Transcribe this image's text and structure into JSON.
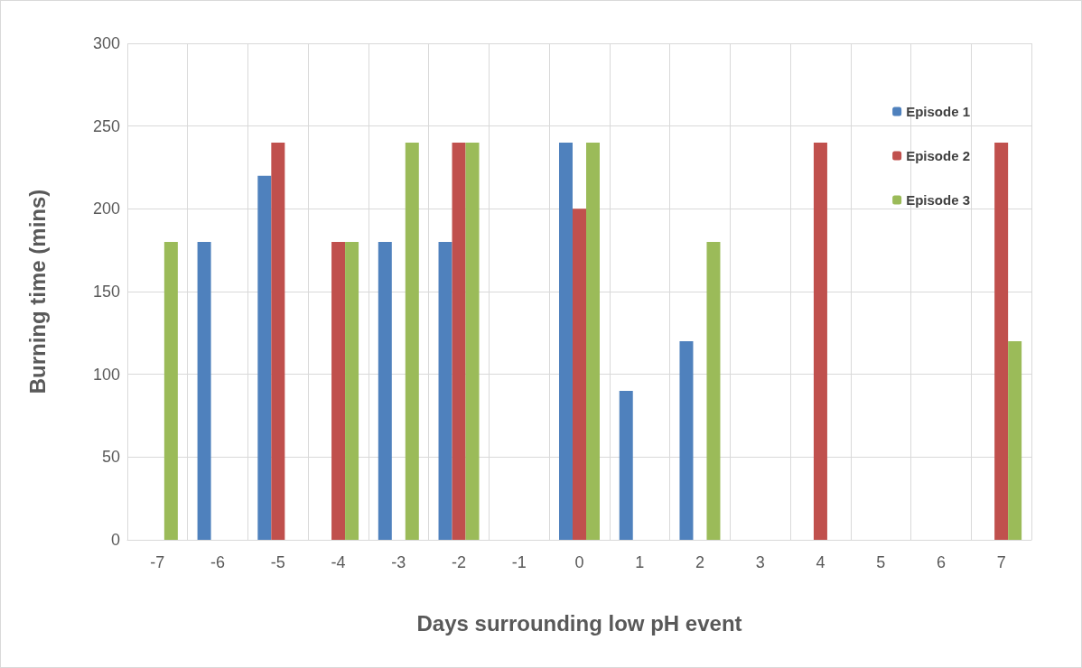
{
  "chart_data": {
    "type": "bar",
    "xlabel": "Days surrounding low pH event",
    "ylabel": "Burning time (mins)",
    "categories": [
      "-7",
      "-6",
      "-5",
      "-4",
      "-3",
      "-2",
      "-1",
      "0",
      "1",
      "2",
      "3",
      "4",
      "5",
      "6",
      "7"
    ],
    "series": [
      {
        "name": "Episode 1",
        "color": "#4f81bd",
        "values": [
          null,
          180,
          220,
          null,
          180,
          180,
          null,
          240,
          90,
          120,
          null,
          null,
          null,
          null,
          null
        ]
      },
      {
        "name": "Episode 2",
        "color": "#c0504d",
        "values": [
          null,
          null,
          240,
          180,
          null,
          240,
          null,
          200,
          null,
          null,
          null,
          240,
          null,
          null,
          240
        ]
      },
      {
        "name": "Episode 3",
        "color": "#9bbb59",
        "values": [
          180,
          null,
          null,
          180,
          240,
          240,
          null,
          240,
          null,
          180,
          null,
          null,
          null,
          null,
          120
        ]
      }
    ],
    "ylim": [
      0,
      300
    ],
    "yticks": [
      0,
      50,
      100,
      150,
      200,
      250,
      300
    ],
    "grid": true,
    "legend": "top right"
  }
}
